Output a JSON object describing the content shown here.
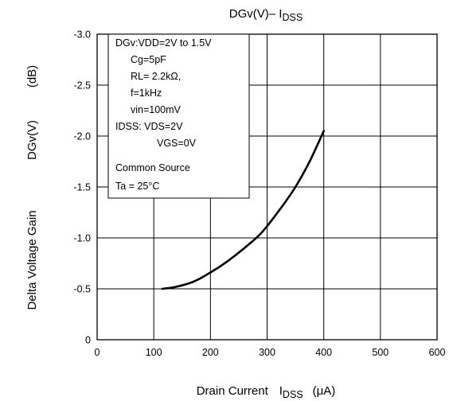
{
  "chart_data": {
    "type": "line",
    "title": {
      "main": "DGv(V)– I",
      "sub": "DSS"
    },
    "xlabel": {
      "prefix": "Drain Current",
      "symbol": "I",
      "sub": "DSS",
      "unit": "(μA)"
    },
    "ylabel": {
      "left": "Delta Voltage Gain",
      "symbol": "DGv(V)",
      "unit": "(dB)"
    },
    "xlim": [
      0,
      600
    ],
    "ylim": [
      0,
      -3.0
    ],
    "x_ticks": [
      0,
      100,
      200,
      300,
      400,
      500,
      600
    ],
    "y_ticks": [
      0,
      -0.5,
      -1.0,
      -1.5,
      -2.0,
      -2.5,
      -3.0
    ],
    "x_tick_labels": [
      "0",
      "100",
      "200",
      "300",
      "400",
      "500",
      "600"
    ],
    "y_tick_labels": [
      "0",
      "-0.5",
      "-1.0",
      "-1.5",
      "-2.0",
      "-2.5",
      "-3.0"
    ],
    "grid": true,
    "legend_box": {
      "placement": "top-left",
      "lines": [
        "DGv:VDD=2V to 1.5V",
        "Cg=5pF",
        "RL= 2.2kΩ,",
        "f=1kHz",
        "vin=100mV",
        "IDSS: VDS=2V",
        "VGS=0V",
        "Common Source",
        "Ta = 25°C"
      ]
    },
    "series": [
      {
        "color": "#000000",
        "x": [
          115,
          140,
          170,
          200,
          230,
          260,
          290,
          320,
          350,
          375,
          400
        ],
        "y": [
          -0.5,
          -0.52,
          -0.57,
          -0.66,
          -0.77,
          -0.9,
          -1.05,
          -1.26,
          -1.5,
          -1.75,
          -2.05
        ]
      }
    ]
  }
}
